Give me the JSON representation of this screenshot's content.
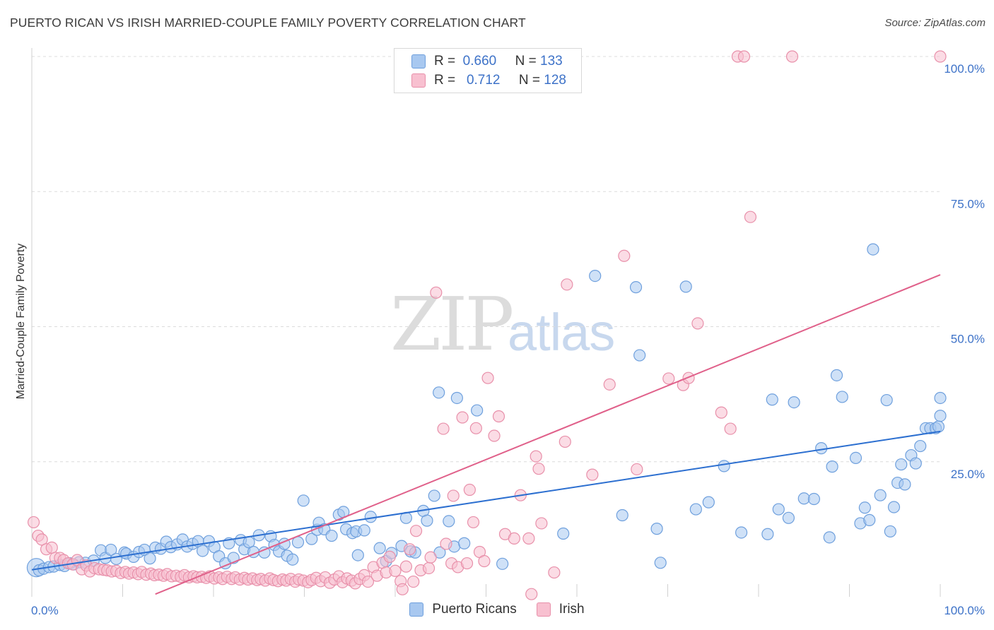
{
  "header": {
    "title": "PUERTO RICAN VS IRISH MARRIED-COUPLE FAMILY POVERTY CORRELATION CHART",
    "source": "Source: ZipAtlas.com"
  },
  "watermark": {
    "part1": "ZIP",
    "part2": "atlas"
  },
  "legend": {
    "rows": [
      {
        "r_label": "R =",
        "r_value": "0.660",
        "n_label": "N =",
        "n_value": "133",
        "color": "#a8c8f0",
        "border": "#6fa0dd"
      },
      {
        "r_label": "R =",
        "r_value": "0.712",
        "n_label": "N =",
        "n_value": "128",
        "color": "#f8c0d0",
        "border": "#e890aa"
      }
    ]
  },
  "bottom_legend": [
    {
      "label": "Puerto Ricans",
      "color": "#a8c8f0",
      "border": "#6fa0dd"
    },
    {
      "label": "Irish",
      "color": "#f8c0d0",
      "border": "#e890aa"
    }
  ],
  "chart_data": {
    "type": "scatter",
    "title": "PUERTO RICAN VS IRISH MARRIED-COUPLE FAMILY POVERTY CORRELATION CHART",
    "xlabel": "",
    "ylabel": "Married-Couple Family Poverty",
    "xlim": [
      0,
      100
    ],
    "ylim": [
      0,
      100
    ],
    "x_tick_labels": [
      "0.0%",
      "100.0%"
    ],
    "y_tick_labels": [
      "25.0%",
      "50.0%",
      "75.0%",
      "100.0%"
    ],
    "y_ticks": [
      25,
      50,
      75,
      100
    ],
    "grid": true,
    "series": [
      {
        "name": "Puerto Ricans",
        "color": "#6fa0dd",
        "fill": "#a8c8f0",
        "r": 0.66,
        "n": 133,
        "trend": [
          [
            0,
            5.0
          ],
          [
            100,
            30.6
          ]
        ],
        "points": [
          [
            0.5,
            5.4
          ],
          [
            0.8,
            4.9
          ],
          [
            1.3,
            5.2
          ],
          [
            1.9,
            5.5
          ],
          [
            2.4,
            5.6
          ],
          [
            3.1,
            5.9
          ],
          [
            3.6,
            5.7
          ],
          [
            4.2,
            6.2
          ],
          [
            4.6,
            6.0
          ],
          [
            5.2,
            6.4
          ],
          [
            5.9,
            6.3
          ],
          [
            6.8,
            6.7
          ],
          [
            7.6,
            8.6
          ],
          [
            8.1,
            7.2
          ],
          [
            8.7,
            8.7
          ],
          [
            9.3,
            7.0
          ],
          [
            10.2,
            8.2
          ],
          [
            10.4,
            8.0
          ],
          [
            11.2,
            7.4
          ],
          [
            11.8,
            8.3
          ],
          [
            12.4,
            8.7
          ],
          [
            13.0,
            7.1
          ],
          [
            13.6,
            9.1
          ],
          [
            14.2,
            8.9
          ],
          [
            14.8,
            10.2
          ],
          [
            15.3,
            9.2
          ],
          [
            16.0,
            9.7
          ],
          [
            16.6,
            10.6
          ],
          [
            17.1,
            9.3
          ],
          [
            17.7,
            9.8
          ],
          [
            18.3,
            10.3
          ],
          [
            18.8,
            8.5
          ],
          [
            19.5,
            10.3
          ],
          [
            20.1,
            9.2
          ],
          [
            20.6,
            7.5
          ],
          [
            21.3,
            6.2
          ],
          [
            21.7,
            9.9
          ],
          [
            22.2,
            7.2
          ],
          [
            23.0,
            10.5
          ],
          [
            23.4,
            8.8
          ],
          [
            23.9,
            10.1
          ],
          [
            24.4,
            8.3
          ],
          [
            25.0,
            11.4
          ],
          [
            25.6,
            8.2
          ],
          [
            26.3,
            11.2
          ],
          [
            26.7,
            9.6
          ],
          [
            27.2,
            8.4
          ],
          [
            27.8,
            9.8
          ],
          [
            28.1,
            7.6
          ],
          [
            28.7,
            6.9
          ],
          [
            29.3,
            10.1
          ],
          [
            29.9,
            17.8
          ],
          [
            30.8,
            10.7
          ],
          [
            31.4,
            12.4
          ],
          [
            31.6,
            13.7
          ],
          [
            32.2,
            12.5
          ],
          [
            33.0,
            11.3
          ],
          [
            33.8,
            15.2
          ],
          [
            34.3,
            15.7
          ],
          [
            34.6,
            12.5
          ],
          [
            35.3,
            11.8
          ],
          [
            35.7,
            12.1
          ],
          [
            35.9,
            7.7
          ],
          [
            36.6,
            12.3
          ],
          [
            37.3,
            14.8
          ],
          [
            38.3,
            9.0
          ],
          [
            39.0,
            6.6
          ],
          [
            39.6,
            8.1
          ],
          [
            40.7,
            9.4
          ],
          [
            41.2,
            14.6
          ],
          [
            41.7,
            8.4
          ],
          [
            42.2,
            8.2
          ],
          [
            43.1,
            15.9
          ],
          [
            43.5,
            14.1
          ],
          [
            44.3,
            18.7
          ],
          [
            44.8,
            37.8
          ],
          [
            44.9,
            8.2
          ],
          [
            45.9,
            14.0
          ],
          [
            46.5,
            9.3
          ],
          [
            46.8,
            36.8
          ],
          [
            47.6,
            9.9
          ],
          [
            49.0,
            34.5
          ],
          [
            51.8,
            6.1
          ],
          [
            58.5,
            11.7
          ],
          [
            62.0,
            59.4
          ],
          [
            65.0,
            15.1
          ],
          [
            66.5,
            57.3
          ],
          [
            66.9,
            44.7
          ],
          [
            68.8,
            12.6
          ],
          [
            69.2,
            6.3
          ],
          [
            72.0,
            57.4
          ],
          [
            73.1,
            16.2
          ],
          [
            74.5,
            17.5
          ],
          [
            76.2,
            24.2
          ],
          [
            78.1,
            11.9
          ],
          [
            81.0,
            11.6
          ],
          [
            81.5,
            36.5
          ],
          [
            82.2,
            16.2
          ],
          [
            83.3,
            14.6
          ],
          [
            83.9,
            36.0
          ],
          [
            85.0,
            18.2
          ],
          [
            86.1,
            18.1
          ],
          [
            86.9,
            27.5
          ],
          [
            87.8,
            11.0
          ],
          [
            88.1,
            24.1
          ],
          [
            88.6,
            41.0
          ],
          [
            89.2,
            37.0
          ],
          [
            90.7,
            25.7
          ],
          [
            91.2,
            13.6
          ],
          [
            91.7,
            16.5
          ],
          [
            92.2,
            14.2
          ],
          [
            92.6,
            64.3
          ],
          [
            93.4,
            18.8
          ],
          [
            94.1,
            36.4
          ],
          [
            94.5,
            12.1
          ],
          [
            94.9,
            16.6
          ],
          [
            95.3,
            21.1
          ],
          [
            95.7,
            24.5
          ],
          [
            96.1,
            20.8
          ],
          [
            96.8,
            26.2
          ],
          [
            97.3,
            24.7
          ],
          [
            97.8,
            27.9
          ],
          [
            98.4,
            31.2
          ],
          [
            98.9,
            31.2
          ],
          [
            99.5,
            31.2
          ],
          [
            99.8,
            31.5
          ],
          [
            100.0,
            33.5
          ],
          [
            100.0,
            36.8
          ]
        ]
      },
      {
        "name": "Irish",
        "color": "#e890aa",
        "fill": "#f8c0d0",
        "r": 0.712,
        "n": 128,
        "trend": [
          [
            13.6,
            0.5
          ],
          [
            100,
            59.6
          ]
        ],
        "points": [
          [
            0.2,
            13.8
          ],
          [
            0.7,
            11.3
          ],
          [
            1.1,
            10.6
          ],
          [
            1.6,
            8.8
          ],
          [
            2.2,
            9.1
          ],
          [
            2.6,
            7.2
          ],
          [
            3.1,
            7.2
          ],
          [
            3.5,
            6.8
          ],
          [
            4.0,
            6.2
          ],
          [
            4.5,
            6.0
          ],
          [
            5.0,
            6.8
          ],
          [
            5.5,
            5.1
          ],
          [
            6.0,
            5.8
          ],
          [
            6.4,
            4.7
          ],
          [
            6.9,
            5.3
          ],
          [
            7.4,
            5.1
          ],
          [
            7.9,
            5.0
          ],
          [
            8.3,
            4.9
          ],
          [
            8.8,
            4.7
          ],
          [
            9.3,
            4.8
          ],
          [
            9.8,
            4.4
          ],
          [
            10.3,
            4.6
          ],
          [
            10.7,
            4.3
          ],
          [
            11.2,
            4.5
          ],
          [
            11.7,
            4.2
          ],
          [
            12.1,
            4.6
          ],
          [
            12.6,
            4.1
          ],
          [
            13.1,
            4.3
          ],
          [
            13.5,
            4.0
          ],
          [
            14.0,
            4.1
          ],
          [
            14.5,
            3.9
          ],
          [
            14.9,
            4.2
          ],
          [
            15.4,
            3.8
          ],
          [
            15.9,
            3.9
          ],
          [
            16.4,
            3.7
          ],
          [
            16.8,
            4.0
          ],
          [
            17.3,
            3.6
          ],
          [
            17.8,
            3.8
          ],
          [
            18.2,
            3.6
          ],
          [
            18.7,
            3.7
          ],
          [
            19.2,
            3.5
          ],
          [
            19.6,
            3.8
          ],
          [
            20.1,
            3.4
          ],
          [
            20.6,
            3.6
          ],
          [
            21.0,
            3.3
          ],
          [
            21.5,
            3.7
          ],
          [
            22.0,
            3.3
          ],
          [
            22.4,
            3.6
          ],
          [
            22.9,
            3.2
          ],
          [
            23.4,
            3.5
          ],
          [
            23.8,
            3.2
          ],
          [
            24.3,
            3.4
          ],
          [
            24.8,
            3.1
          ],
          [
            25.2,
            3.3
          ],
          [
            25.7,
            3.0
          ],
          [
            26.2,
            3.4
          ],
          [
            26.6,
            3.1
          ],
          [
            27.1,
            2.9
          ],
          [
            27.6,
            3.2
          ],
          [
            28.0,
            3.0
          ],
          [
            28.5,
            3.3
          ],
          [
            29.0,
            2.8
          ],
          [
            29.4,
            3.2
          ],
          [
            29.9,
            3.0
          ],
          [
            30.4,
            2.7
          ],
          [
            30.8,
            3.1
          ],
          [
            31.3,
            3.5
          ],
          [
            31.8,
            2.9
          ],
          [
            32.3,
            3.6
          ],
          [
            32.8,
            2.6
          ],
          [
            33.3,
            3.2
          ],
          [
            33.8,
            3.8
          ],
          [
            34.2,
            2.7
          ],
          [
            34.7,
            3.4
          ],
          [
            35.2,
            3.0
          ],
          [
            35.6,
            2.5
          ],
          [
            36.1,
            3.3
          ],
          [
            36.6,
            4.0
          ],
          [
            37.0,
            2.8
          ],
          [
            37.6,
            5.5
          ],
          [
            38.0,
            3.9
          ],
          [
            38.6,
            6.3
          ],
          [
            39.0,
            4.5
          ],
          [
            39.4,
            7.4
          ],
          [
            40.0,
            4.8
          ],
          [
            40.6,
            2.9
          ],
          [
            40.8,
            1.4
          ],
          [
            41.2,
            5.6
          ],
          [
            41.6,
            8.8
          ],
          [
            42.0,
            2.8
          ],
          [
            42.3,
            12.2
          ],
          [
            42.8,
            4.9
          ],
          [
            43.7,
            5.3
          ],
          [
            43.9,
            7.3
          ],
          [
            44.5,
            56.3
          ],
          [
            45.3,
            31.1
          ],
          [
            45.6,
            9.8
          ],
          [
            46.2,
            6.2
          ],
          [
            46.4,
            18.7
          ],
          [
            46.9,
            5.5
          ],
          [
            47.4,
            33.2
          ],
          [
            47.9,
            6.2
          ],
          [
            48.2,
            19.8
          ],
          [
            48.6,
            13.8
          ],
          [
            48.9,
            31.2
          ],
          [
            49.3,
            8.3
          ],
          [
            49.8,
            6.6
          ],
          [
            50.2,
            40.5
          ],
          [
            50.9,
            29.8
          ],
          [
            51.4,
            33.4
          ],
          [
            52.1,
            11.6
          ],
          [
            53.1,
            10.8
          ],
          [
            53.8,
            18.8
          ],
          [
            54.7,
            10.8
          ],
          [
            55.0,
            0.5
          ],
          [
            55.5,
            26.0
          ],
          [
            55.8,
            23.7
          ],
          [
            56.1,
            13.6
          ],
          [
            57.5,
            4.5
          ],
          [
            58.7,
            28.7
          ],
          [
            58.9,
            57.8
          ],
          [
            61.7,
            22.6
          ],
          [
            63.6,
            39.3
          ],
          [
            65.2,
            63.1
          ],
          [
            66.6,
            23.6
          ],
          [
            70.1,
            40.4
          ],
          [
            71.7,
            39.2
          ],
          [
            72.3,
            40.5
          ],
          [
            73.3,
            50.6
          ],
          [
            75.9,
            34.1
          ],
          [
            76.9,
            31.1
          ],
          [
            77.7,
            100.0
          ],
          [
            78.4,
            100.0
          ],
          [
            79.1,
            70.3
          ],
          [
            83.7,
            100.0
          ],
          [
            100.0,
            100.0
          ]
        ]
      }
    ]
  }
}
